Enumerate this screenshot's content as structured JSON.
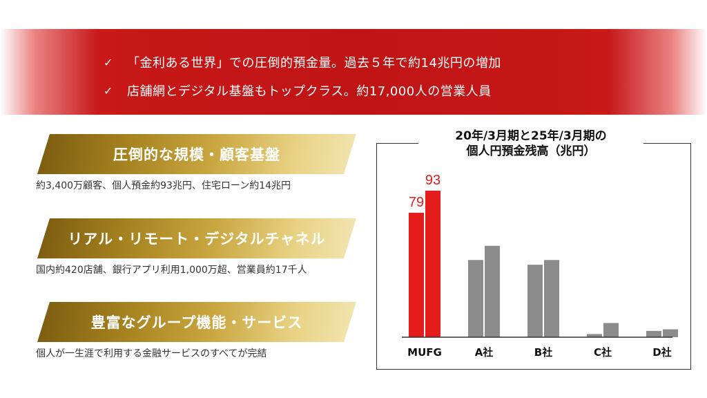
{
  "banner": {
    "lines": [
      {
        "check": "✓",
        "text": "「金利ある世界」での圧倒的預金量。過去５年で約14兆円の増加"
      },
      {
        "check": "✓",
        "text": "店舗網とデジタル基盤もトップクラス。約17,000人の営業人員"
      }
    ]
  },
  "features": [
    {
      "title": "圧倒的な規模・顧客基盤",
      "desc": "約3,400万顧客、個人預金約93兆円、住宅ローン約14兆円"
    },
    {
      "title": "リアル・リモート・デジタルチャネル",
      "desc": "国内約420店舗、銀行アプリ利用1,000万超、営業員約17千人"
    },
    {
      "title": "豊富なグループ機能・サービス",
      "desc": "個人が一生涯で利用する金融サービスのすべてが完結"
    }
  ],
  "colors": {
    "highlight": "#e51c1c",
    "other": "#8c8c8c",
    "label": "#e51c1c"
  },
  "chart_data": {
    "type": "bar",
    "title_line1": "20年/3月期と25年/3月期の",
    "title_line2": "個人円預金残高（兆円）",
    "categories": [
      "MUFG",
      "A社",
      "B社",
      "C社",
      "D社"
    ],
    "series": [
      {
        "values": [
          79,
          49,
          46,
          2,
          4
        ]
      },
      {
        "values": [
          93,
          58,
          49,
          9,
          5
        ]
      }
    ],
    "data_labels": {
      "MUFG": [
        79,
        93
      ]
    },
    "ylim": [
      0,
      100
    ],
    "grid": false,
    "legend": "none"
  }
}
